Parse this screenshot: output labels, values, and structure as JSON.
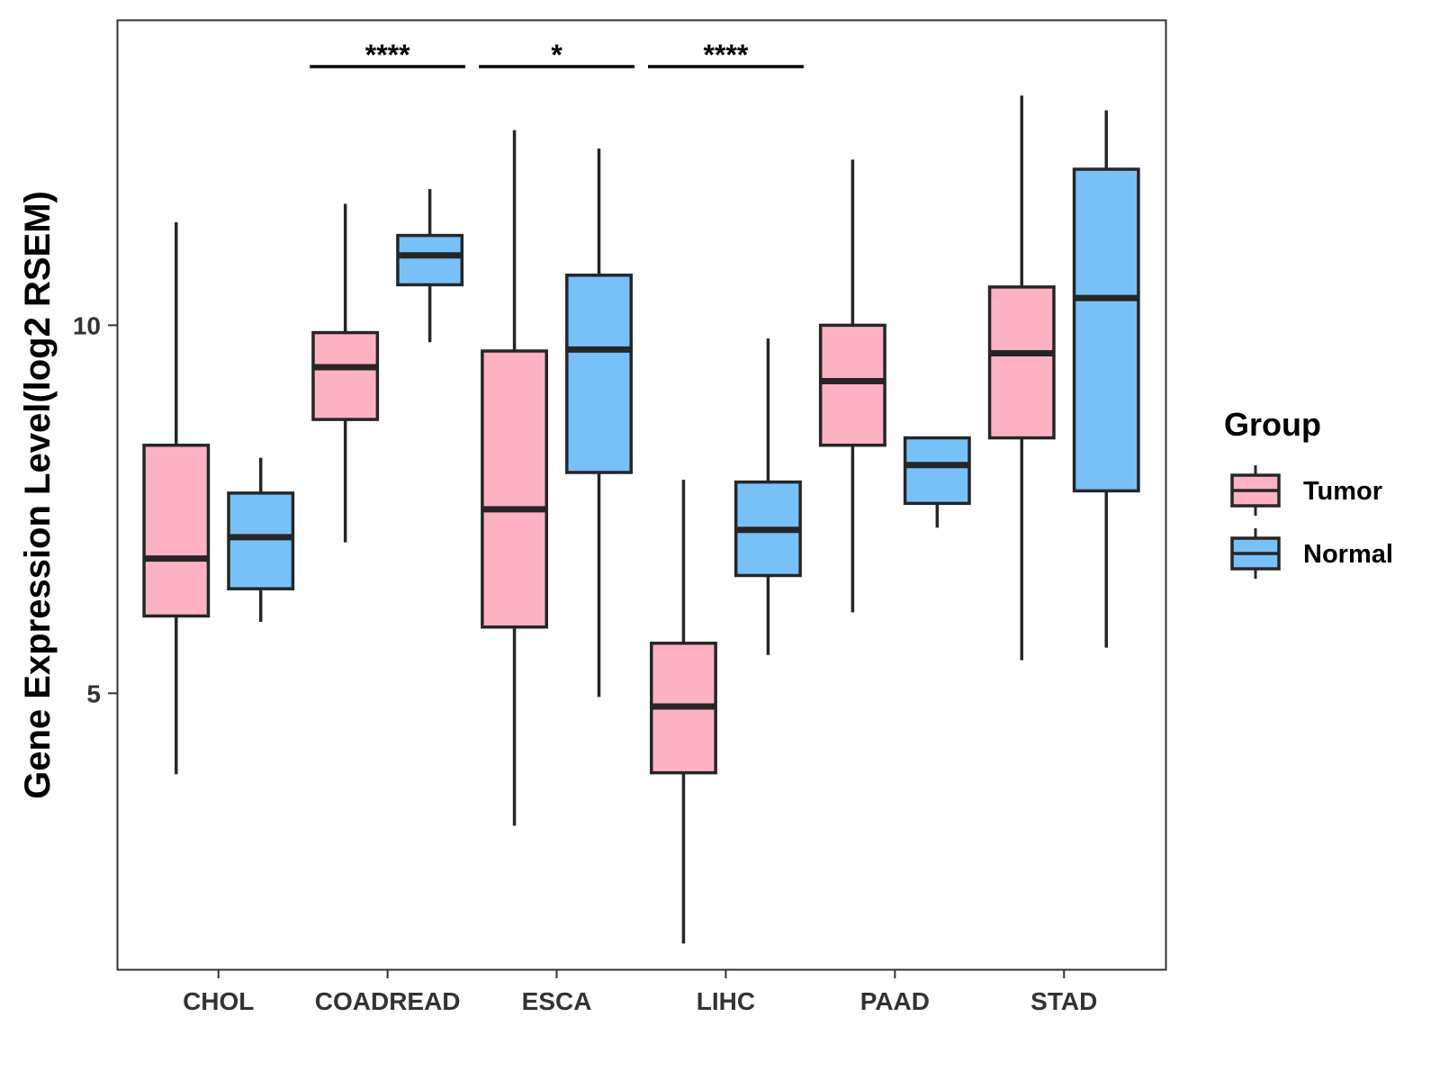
{
  "chart_data": {
    "type": "boxplot",
    "title": "",
    "xlabel": "",
    "ylabel": "Gene Expression Level(log2 RSEM)",
    "ylim": [
      1.25,
      14.15
    ],
    "yticks": [
      5,
      10
    ],
    "ytick_labels": [
      "5",
      "10"
    ],
    "categories": [
      "CHOL",
      "COADREAD",
      "ESCA",
      "LIHC",
      "PAAD",
      "STAD"
    ],
    "legend": {
      "title": "Group",
      "position": "right"
    },
    "colors": {
      "Tumor": "#FCB2C2",
      "Normal": "#78C1F8",
      "outline": "#262626"
    },
    "series": [
      {
        "name": "Tumor",
        "boxes": [
          {
            "min": 3.9,
            "q1": 6.05,
            "median": 6.83,
            "q3": 8.37,
            "max": 11.4
          },
          {
            "min": 7.05,
            "q1": 8.72,
            "median": 9.43,
            "q3": 9.9,
            "max": 11.65
          },
          {
            "min": 3.2,
            "q1": 5.9,
            "median": 7.5,
            "q3": 9.65,
            "max": 12.65
          },
          {
            "min": 1.6,
            "q1": 3.92,
            "median": 4.82,
            "q3": 5.68,
            "max": 7.9
          },
          {
            "min": 6.1,
            "q1": 8.37,
            "median": 9.24,
            "q3": 10.0,
            "max": 12.25
          },
          {
            "min": 5.45,
            "q1": 8.47,
            "median": 9.62,
            "q3": 10.52,
            "max": 13.12
          }
        ]
      },
      {
        "name": "Normal",
        "boxes": [
          {
            "min": 5.97,
            "q1": 6.42,
            "median": 7.12,
            "q3": 7.72,
            "max": 8.2
          },
          {
            "min": 9.77,
            "q1": 10.55,
            "median": 10.95,
            "q3": 11.22,
            "max": 11.85
          },
          {
            "min": 4.95,
            "q1": 8.0,
            "median": 9.67,
            "q3": 10.68,
            "max": 12.4
          },
          {
            "min": 5.52,
            "q1": 6.6,
            "median": 7.22,
            "q3": 7.87,
            "max": 9.82
          },
          {
            "min": 7.25,
            "q1": 7.58,
            "median": 8.1,
            "q3": 8.47,
            "max": 8.47
          },
          {
            "min": 5.62,
            "q1": 7.75,
            "median": 10.37,
            "q3": 12.12,
            "max": 12.92
          }
        ]
      }
    ],
    "annotations": [
      {
        "category": "COADREAD",
        "label": "****"
      },
      {
        "category": "ESCA",
        "label": "*"
      },
      {
        "category": "LIHC",
        "label": "****"
      }
    ]
  }
}
